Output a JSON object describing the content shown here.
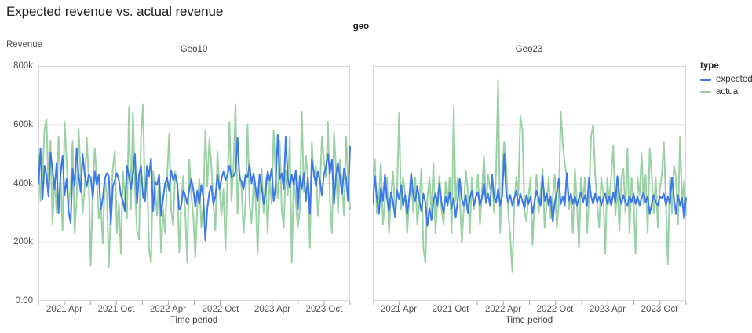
{
  "title": "Expected revenue vs. actual revenue",
  "facet_header": "geo",
  "y_axis_title": "Revenue",
  "x_axis_title": "Time period",
  "axes": {
    "y_ticks": [
      "0.00",
      "200k",
      "400k",
      "600k",
      "800k"
    ],
    "x_ticks": [
      "2021 Apr",
      "2021 Oct",
      "2022 Apr",
      "2022 Oct",
      "2023 Apr",
      "2023 Oct"
    ]
  },
  "legend": {
    "title": "type",
    "items": [
      {
        "label": "expected",
        "color": "#3d79e8"
      },
      {
        "label": "actual",
        "color": "#94cfa0"
      }
    ]
  },
  "colors": {
    "expected": "#3d79e8",
    "actual": "#94cfa0",
    "gridline": "#e6e6e9",
    "frame": "#d7d7da",
    "tick": "#9aa0a6"
  },
  "chart_data": [
    {
      "type": "line",
      "facet": "Geo10",
      "x_start": "2021 Jan",
      "x_end": "2023 Dec",
      "x_interval": "weekly",
      "ylim": [
        0,
        800
      ],
      "values_unit": "thousands",
      "grid": true,
      "series": [
        {
          "name": "expected",
          "values": [
            400,
            520,
            345,
            460,
            430,
            355,
            505,
            445,
            380,
            470,
            300,
            430,
            495,
            360,
            415,
            305,
            265,
            450,
            390,
            520,
            430,
            370,
            500,
            430,
            390,
            430,
            420,
            350,
            440,
            395,
            430,
            310,
            350,
            415,
            435,
            425,
            260,
            390,
            410,
            435,
            410,
            360,
            340,
            305,
            460,
            425,
            380,
            435,
            500,
            330,
            430,
            460,
            355,
            340,
            460,
            425,
            485,
            305,
            405,
            395,
            430,
            290,
            350,
            400,
            420,
            375,
            445,
            410,
            430,
            400,
            310,
            325,
            375,
            360,
            330,
            380,
            415,
            380,
            320,
            375,
            330,
            395,
            355,
            205,
            315,
            370,
            390,
            330,
            355,
            430,
            380,
            415,
            440,
            410,
            430,
            460,
            420,
            425,
            440,
            555,
            420,
            405,
            380,
            430,
            420,
            465,
            400,
            435,
            385,
            340,
            430,
            390,
            330,
            375,
            440,
            410,
            450,
            340,
            395,
            565,
            415,
            435,
            380,
            560,
            420,
            385,
            430,
            395,
            445,
            310,
            425,
            380,
            435,
            340,
            420,
            295,
            480,
            435,
            390,
            440,
            410,
            360,
            430,
            455,
            500,
            435,
            480,
            330,
            430,
            470,
            420,
            365,
            450,
            420,
            340,
            525
          ]
        },
        {
          "name": "actual",
          "values": [
            500,
            340,
            425,
            585,
            620,
            380,
            545,
            260,
            420,
            300,
            560,
            415,
            240,
            610,
            480,
            320,
            390,
            545,
            230,
            350,
            585,
            430,
            300,
            390,
            555,
            420,
            120,
            380,
            520,
            415,
            280,
            330,
            195,
            420,
            360,
            115,
            310,
            455,
            510,
            230,
            330,
            160,
            440,
            350,
            280,
            660,
            310,
            640,
            380,
            240,
            210,
            560,
            670,
            340,
            430,
            180,
            130,
            440,
            380,
            290,
            410,
            165,
            310,
            230,
            420,
            570,
            310,
            255,
            440,
            395,
            165,
            340,
            425,
            300,
            130,
            480,
            360,
            290,
            150,
            320,
            415,
            250,
            330,
            580,
            390,
            550,
            460,
            330,
            240,
            510,
            390,
            290,
            380,
            175,
            420,
            610,
            340,
            460,
            670,
            295,
            440,
            385,
            230,
            340,
            600,
            330,
            265,
            410,
            350,
            160,
            370,
            450,
            300,
            420,
            230,
            420,
            330,
            580,
            420,
            350,
            545,
            310,
            250,
            445,
            360,
            560,
            130,
            420,
            340,
            250,
            310,
            645,
            370,
            495,
            420,
            180,
            540,
            420,
            460,
            290,
            375,
            560,
            480,
            420,
            610,
            340,
            230,
            575,
            450,
            300,
            480,
            390,
            290,
            560,
            420,
            310
          ]
        }
      ]
    },
    {
      "type": "line",
      "facet": "Geo23",
      "x_start": "2021 Jan",
      "x_end": "2023 Dec",
      "x_interval": "weekly",
      "ylim": [
        0,
        800
      ],
      "values_unit": "thousands",
      "grid": true,
      "series": [
        {
          "name": "expected",
          "values": [
            330,
            425,
            350,
            295,
            385,
            340,
            430,
            350,
            305,
            370,
            335,
            285,
            375,
            345,
            395,
            325,
            360,
            295,
            350,
            435,
            360,
            340,
            390,
            345,
            305,
            365,
            335,
            255,
            315,
            275,
            340,
            365,
            325,
            400,
            335,
            300,
            355,
            325,
            370,
            315,
            350,
            285,
            340,
            415,
            345,
            325,
            360,
            300,
            350,
            375,
            325,
            355,
            370,
            325,
            350,
            400,
            335,
            365,
            325,
            430,
            350,
            335,
            380,
            325,
            355,
            500,
            365,
            335,
            360,
            325,
            350,
            375,
            325,
            365,
            340,
            315,
            360,
            330,
            355,
            300,
            335,
            375,
            350,
            325,
            425,
            340,
            365,
            325,
            355,
            270,
            335,
            365,
            415,
            330,
            355,
            325,
            435,
            340,
            365,
            330,
            355,
            325,
            350,
            370,
            335,
            360,
            325,
            420,
            355,
            330,
            365,
            335,
            355,
            325,
            350,
            365,
            330,
            355,
            325,
            370,
            335,
            425,
            355,
            330,
            360,
            335,
            325,
            355,
            335,
            365,
            330,
            355,
            325,
            350,
            370,
            335,
            355,
            295,
            330,
            360,
            335,
            325,
            355,
            350,
            365,
            325,
            355,
            330,
            420,
            350,
            295,
            360,
            325,
            350,
            280,
            350
          ]
        },
        {
          "name": "actual",
          "values": [
            430,
            480,
            300,
            350,
            470,
            260,
            340,
            420,
            230,
            360,
            440,
            295,
            380,
            640,
            310,
            420,
            360,
            230,
            350,
            430,
            300,
            420,
            260,
            330,
            450,
            180,
            130,
            350,
            420,
            300,
            470,
            230,
            350,
            425,
            310,
            260,
            405,
            340,
            420,
            230,
            660,
            340,
            420,
            360,
            200,
            310,
            445,
            375,
            230,
            420,
            310,
            360,
            430,
            260,
            370,
            495,
            330,
            430,
            380,
            420,
            300,
            445,
            750,
            230,
            425,
            540,
            460,
            300,
            220,
            100,
            340,
            420,
            360,
            630,
            580,
            310,
            270,
            350,
            420,
            190,
            340,
            430,
            300,
            370,
            450,
            250,
            330,
            420,
            280,
            350,
            430,
            250,
            330,
            645,
            530,
            470,
            420,
            310,
            360,
            230,
            450,
            330,
            180,
            420,
            340,
            420,
            230,
            360,
            560,
            600,
            430,
            330,
            250,
            420,
            360,
            160,
            420,
            330,
            430,
            530,
            290,
            380,
            240,
            420,
            450,
            300,
            520,
            230,
            420,
            340,
            160,
            420,
            360,
            500,
            330,
            430,
            230,
            520,
            430,
            300,
            420,
            250,
            380,
            430,
            540,
            340,
            125,
            420,
            300,
            460,
            420,
            260,
            560,
            330,
            410,
            290
          ]
        }
      ]
    }
  ]
}
